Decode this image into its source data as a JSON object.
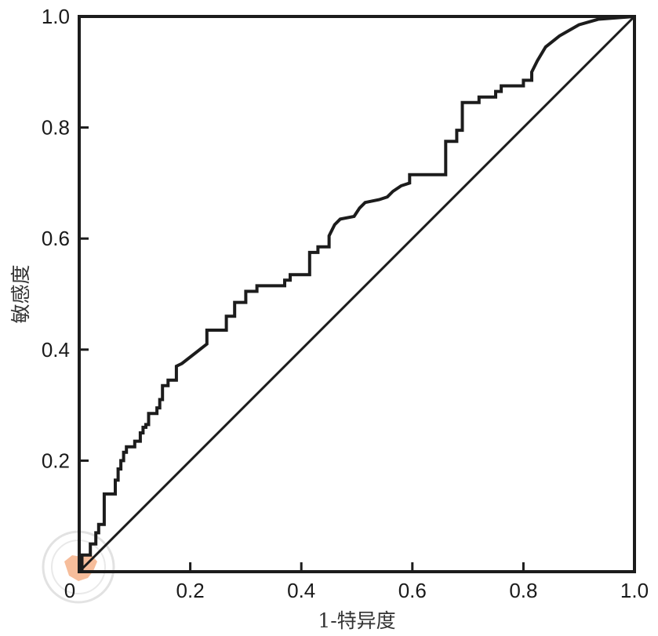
{
  "chart_data": {
    "type": "line",
    "xlabel": "1-特异度",
    "ylabel": "敏感度",
    "xlim": [
      0,
      1
    ],
    "ylim": [
      0,
      1
    ],
    "grid": false,
    "x_ticks": [
      "0",
      "0.2",
      "0.4",
      "0.6",
      "0.8",
      "1.0"
    ],
    "y_ticks": [
      "0.2",
      "0.4",
      "0.6",
      "0.8",
      "1.0"
    ],
    "series": [
      {
        "type": "step",
        "x": [
          0,
          0.005,
          0.005,
          0.02,
          0.02,
          0.03,
          0.03,
          0.035,
          0.035,
          0.045,
          0.045,
          0.065,
          0.065,
          0.07,
          0.07,
          0.075,
          0.075,
          0.08,
          0.08,
          0.085,
          0.085,
          0.1,
          0.1,
          0.11,
          0.11,
          0.115,
          0.115,
          0.12,
          0.12,
          0.125,
          0.125,
          0.14,
          0.14,
          0.145,
          0.145,
          0.15,
          0.15,
          0.16,
          0.16,
          0.175,
          0.175,
          0.185,
          0.23,
          0.23,
          0.265,
          0.265,
          0.28,
          0.28,
          0.3,
          0.3,
          0.32,
          0.32,
          0.37,
          0.37,
          0.38,
          0.38,
          0.415,
          0.415,
          0.43,
          0.43,
          0.45,
          0.45,
          0.46,
          0.47,
          0.47,
          0.495,
          0.495,
          0.505,
          0.505,
          0.515,
          0.515,
          0.54,
          0.54,
          0.555,
          0.555,
          0.565,
          0.565,
          0.58,
          0.58,
          0.595,
          0.595,
          0.66,
          0.66,
          0.68,
          0.68,
          0.69,
          0.69,
          0.72,
          0.72,
          0.75,
          0.75,
          0.76,
          0.76,
          0.8,
          0.8,
          0.815,
          0.815,
          0.825,
          0.84,
          0.84,
          0.865,
          0.865,
          0.9,
          0.9,
          0.935,
          0.935,
          1.0
        ],
        "y": [
          0,
          0,
          0.03,
          0.03,
          0.05,
          0.05,
          0.07,
          0.07,
          0.085,
          0.085,
          0.14,
          0.14,
          0.165,
          0.165,
          0.185,
          0.185,
          0.2,
          0.2,
          0.215,
          0.215,
          0.225,
          0.225,
          0.235,
          0.235,
          0.25,
          0.25,
          0.26,
          0.26,
          0.265,
          0.265,
          0.285,
          0.285,
          0.295,
          0.295,
          0.31,
          0.31,
          0.335,
          0.335,
          0.345,
          0.345,
          0.37,
          0.375,
          0.41,
          0.435,
          0.435,
          0.46,
          0.46,
          0.485,
          0.485,
          0.505,
          0.505,
          0.515,
          0.515,
          0.525,
          0.525,
          0.535,
          0.535,
          0.575,
          0.575,
          0.585,
          0.585,
          0.605,
          0.625,
          0.635,
          0.635,
          0.64,
          0.64,
          0.655,
          0.655,
          0.665,
          0.665,
          0.67,
          0.67,
          0.675,
          0.675,
          0.685,
          0.685,
          0.695,
          0.695,
          0.7,
          0.715,
          0.715,
          0.775,
          0.775,
          0.795,
          0.795,
          0.845,
          0.845,
          0.855,
          0.855,
          0.865,
          0.865,
          0.875,
          0.875,
          0.885,
          0.885,
          0.9,
          0.92,
          0.945,
          0.945,
          0.965,
          0.965,
          0.985,
          0.985,
          0.995,
          0.995,
          1.0
        ]
      },
      {
        "type": "line",
        "x": [
          0,
          1
        ],
        "y": [
          0,
          1
        ]
      }
    ],
    "line_color": "#1c1c1c",
    "watermark_color": "#f4a77a"
  }
}
